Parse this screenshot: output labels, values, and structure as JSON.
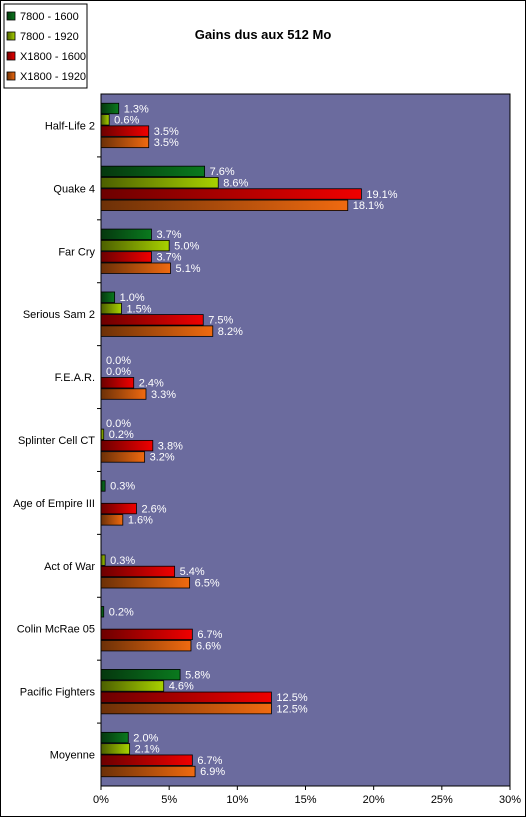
{
  "chart_data": {
    "type": "bar",
    "orientation": "horizontal",
    "title": "Gains dus aux 512 Mo",
    "xlabel": "",
    "ylabel": "",
    "xlim": [
      0,
      30
    ],
    "x_ticks": [
      "0%",
      "5%",
      "10%",
      "15%",
      "20%",
      "25%",
      "30%"
    ],
    "grid": false,
    "legend_position": "top-left",
    "plot_background": "#6b6b9e",
    "categories": [
      "Half-Life 2",
      "Quake 4",
      "Far Cry",
      "Serious Sam 2",
      "F.E.A.R.",
      "Splinter Cell CT",
      "Age of Empire III",
      "Act of War",
      "Colin McRae 05",
      "Pacific Fighters",
      "Moyenne"
    ],
    "series": [
      {
        "name": "7800 - 1600",
        "color": "#0a7a1e",
        "values": [
          1.3,
          7.6,
          3.7,
          1.0,
          0.0,
          0.0,
          0.3,
          null,
          0.2,
          5.8,
          2.0
        ],
        "labels": [
          "1.3%",
          "7.6%",
          "3.7%",
          "1.0%",
          "0.0%",
          "0.0%",
          "0.3%",
          "",
          "0.2%",
          "5.8%",
          "2.0%"
        ]
      },
      {
        "name": "7800 - 1920",
        "color": "#a8d200",
        "values": [
          0.6,
          8.6,
          5.0,
          1.5,
          0.0,
          0.2,
          null,
          0.3,
          null,
          4.6,
          2.1
        ],
        "labels": [
          "0.6%",
          "8.6%",
          "5.0%",
          "1.5%",
          "0.0%",
          "0.2%",
          "",
          "0.3%",
          "",
          "4.6%",
          "2.1%"
        ]
      },
      {
        "name": "X1800 - 1600",
        "color": "#f00000",
        "values": [
          3.5,
          19.1,
          3.7,
          7.5,
          2.4,
          3.8,
          2.6,
          5.4,
          6.7,
          12.5,
          6.7
        ],
        "labels": [
          "3.5%",
          "19.1%",
          "3.7%",
          "7.5%",
          "2.4%",
          "3.8%",
          "2.6%",
          "5.4%",
          "6.7%",
          "12.5%",
          "6.7%"
        ]
      },
      {
        "name": "X1800 - 1920",
        "color": "#f06a10",
        "values": [
          3.5,
          18.1,
          5.1,
          8.2,
          3.3,
          3.2,
          1.6,
          6.5,
          6.6,
          12.5,
          6.9
        ],
        "labels": [
          "3.5%",
          "18.1%",
          "5.1%",
          "8.2%",
          "3.3%",
          "3.2%",
          "1.6%",
          "6.5%",
          "6.6%",
          "12.5%",
          "6.9%"
        ]
      }
    ]
  }
}
